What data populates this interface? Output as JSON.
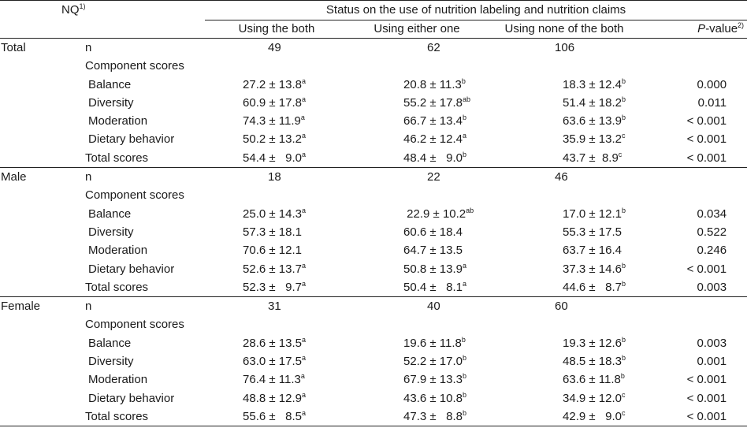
{
  "header": {
    "nq_label": "NQ",
    "nq_sup": "1)",
    "status_label": "Status on the use of nutrition labeling and nutrition claims",
    "col_both": "Using the both",
    "col_either": "Using either one",
    "col_none": "Using none of the both",
    "col_p_ital": "P",
    "col_p_rest": "-value",
    "col_p_sup": "2)"
  },
  "sections": [
    {
      "group": "Total",
      "n_label": "n",
      "n": [
        "49",
        "62",
        "106"
      ],
      "component_label": "Component scores",
      "rows": [
        {
          "label": "Balance",
          "a": "27.2 ± 13.8",
          "a_sup": "a",
          "b": "20.8 ± 11.3",
          "b_sup": "b",
          "c": "18.3 ± 12.4",
          "c_sup": "b",
          "p": "0.000"
        },
        {
          "label": "Diversity",
          "a": "60.9 ± 17.8",
          "a_sup": "a",
          "b": "55.2 ± 17.8",
          "b_sup": "ab",
          "c": "51.4 ± 18.2",
          "c_sup": "b",
          "p": "0.011"
        },
        {
          "label": "Moderation",
          "a": "74.3 ± 11.9",
          "a_sup": "a",
          "b": "66.7 ± 13.4",
          "b_sup": "b",
          "c": "63.6 ± 13.9",
          "c_sup": "b",
          "p": "< 0.001"
        },
        {
          "label": "Dietary behavior",
          "a": "50.2 ± 13.2",
          "a_sup": "a",
          "b": "46.2 ± 12.4",
          "b_sup": "a",
          "c": "35.9 ± 13.2",
          "c_sup": "c",
          "p": "< 0.001"
        }
      ],
      "total": {
        "label": "Total scores",
        "a": "54.4 ±   9.0",
        "a_sup": "a",
        "b": "48.4 ±   9.0",
        "b_sup": "b",
        "c": "43.7 ±  8.9",
        "c_sup": "c",
        "p": "< 0.001"
      }
    },
    {
      "group": "Male",
      "n_label": "n",
      "n": [
        "18",
        "22",
        "46"
      ],
      "component_label": "Component scores",
      "rows": [
        {
          "label": "Balance",
          "a": "25.0 ± 14.3",
          "a_sup": "a",
          "b": " 22.9 ± 10.2",
          "b_sup": "ab",
          "c": "17.0 ± 12.1",
          "c_sup": "b",
          "p": "0.034"
        },
        {
          "label": "Diversity",
          "a": "57.3 ± 18.1",
          "a_sup": "",
          "b": "60.6 ± 18.4",
          "b_sup": "",
          "c": "55.3 ± 17.5",
          "c_sup": "",
          "p": "0.522"
        },
        {
          "label": "Moderation",
          "a": "70.6 ± 12.1",
          "a_sup": "",
          "b": "64.7 ± 13.5",
          "b_sup": "",
          "c": "63.7 ± 16.4",
          "c_sup": "",
          "p": "0.246"
        },
        {
          "label": "Dietary behavior",
          "a": "52.6 ± 13.7",
          "a_sup": "a",
          "b": "50.8 ± 13.9",
          "b_sup": "a",
          "c": "37.3 ± 14.6",
          "c_sup": "b",
          "p": "< 0.001"
        }
      ],
      "total": {
        "label": "Total scores",
        "a": "52.3 ±   9.7",
        "a_sup": "a",
        "b": "50.4 ±   8.1",
        "b_sup": "a",
        "c": "44.6 ±   8.7",
        "c_sup": "b",
        "p": "0.003"
      }
    },
    {
      "group": "Female",
      "n_label": "n",
      "n": [
        "31",
        "40",
        "60"
      ],
      "component_label": "Component scores",
      "rows": [
        {
          "label": "Balance",
          "a": "28.6 ± 13.5",
          "a_sup": "a",
          "b": "19.6 ± 11.8",
          "b_sup": "b",
          "c": "19.3 ± 12.6",
          "c_sup": "b",
          "p": "0.003"
        },
        {
          "label": "Diversity",
          "a": "63.0 ± 17.5",
          "a_sup": "a",
          "b": "52.2 ± 17.0",
          "b_sup": "b",
          "c": "48.5 ± 18.3",
          "c_sup": "b",
          "p": "0.001"
        },
        {
          "label": "Moderation",
          "a": "76.4 ± 11.3",
          "a_sup": "a",
          "b": "67.9 ± 13.3",
          "b_sup": "b",
          "c": "63.6 ± 11.8",
          "c_sup": "b",
          "p": "< 0.001"
        },
        {
          "label": "Dietary behavior",
          "a": "48.8 ± 12.9",
          "a_sup": "a",
          "b": "43.6 ± 10.8",
          "b_sup": "b",
          "c": "34.9 ± 12.0",
          "c_sup": "c",
          "p": "< 0.001"
        }
      ],
      "total": {
        "label": "Total scores",
        "a": "55.6 ±   8.5",
        "a_sup": "a",
        "b": "47.3 ±   8.8",
        "b_sup": "b",
        "c": "42.9 ±   9.0",
        "c_sup": "c",
        "p": "< 0.001"
      }
    }
  ]
}
